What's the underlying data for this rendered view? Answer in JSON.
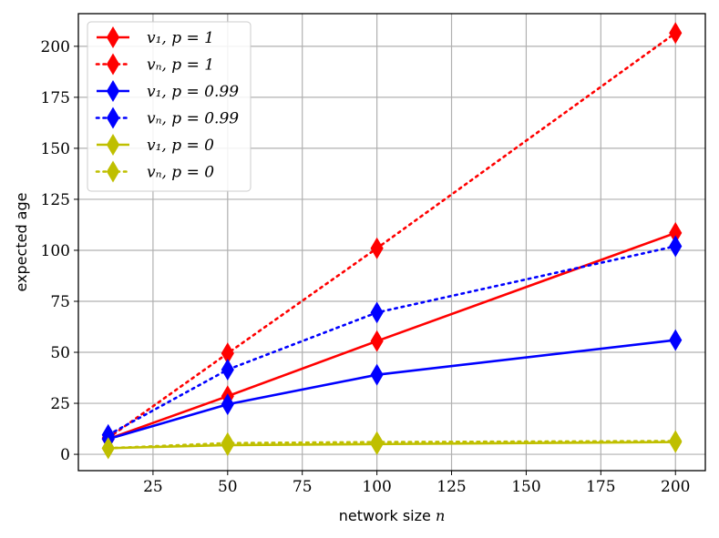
{
  "chart_data": {
    "type": "line",
    "xlabel": "network size",
    "xlabel_var": "n",
    "ylabel": "expected age",
    "xlim": [
      0,
      210
    ],
    "ylim": [
      -8,
      216
    ],
    "x_ticks": [
      25,
      50,
      75,
      100,
      125,
      150,
      175,
      200
    ],
    "y_ticks": [
      0,
      25,
      50,
      75,
      100,
      125,
      150,
      175,
      200
    ],
    "grid": true,
    "legend_position": "top-left",
    "x": [
      10,
      50,
      100,
      200
    ],
    "series": [
      {
        "name": "v₁, p = 1",
        "values": [
          7.5,
          28.5,
          55.5,
          108.5
        ],
        "color": "#ff0000",
        "linestyle": "solid",
        "marker": "thin-diamond"
      },
      {
        "name": "vₙ, p = 1",
        "values": [
          8,
          49.5,
          101,
          206.5
        ],
        "color": "#ff0000",
        "linestyle": "dotted",
        "marker": "thin-diamond"
      },
      {
        "name": "v₁, p = 0.99",
        "values": [
          7.5,
          24.5,
          39,
          56
        ],
        "color": "#0000ff",
        "linestyle": "solid",
        "marker": "thin-diamond"
      },
      {
        "name": "vₙ, p = 0.99",
        "values": [
          9.5,
          41.5,
          69.5,
          102
        ],
        "color": "#0000ff",
        "linestyle": "dotted",
        "marker": "thin-diamond"
      },
      {
        "name": "v₁, p = 0",
        "values": [
          3,
          4.5,
          5,
          6
        ],
        "color": "#bfbf00",
        "linestyle": "solid",
        "marker": "thin-diamond"
      },
      {
        "name": "vₙ, p = 0",
        "values": [
          3,
          5.5,
          6,
          6.5
        ],
        "color": "#bfbf00",
        "linestyle": "dotted",
        "marker": "thin-diamond"
      }
    ]
  }
}
